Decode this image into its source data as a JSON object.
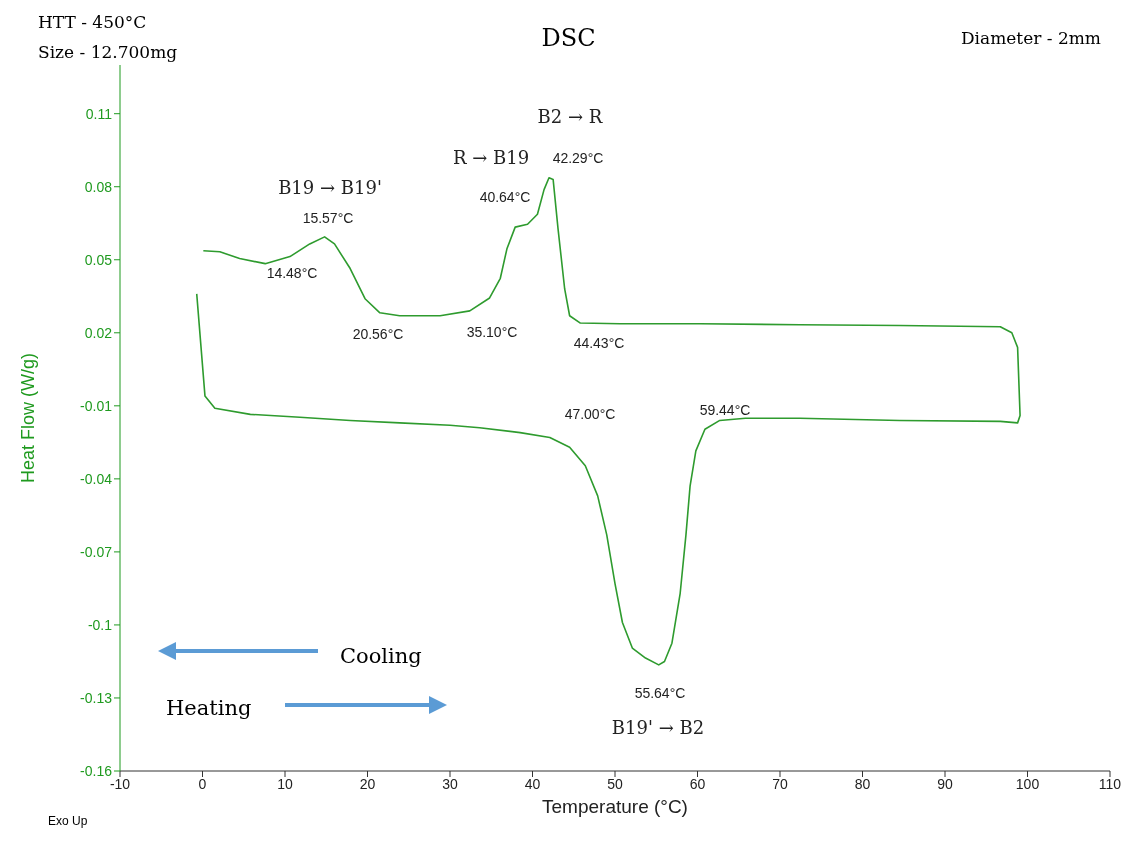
{
  "chart_data": {
    "type": "line",
    "title": "DSC",
    "xlabel": "Temperature (°C)",
    "ylabel": "Heat Flow (W/g)",
    "xlim": [
      -10,
      110
    ],
    "xticks": [
      -10,
      0,
      10,
      20,
      30,
      40,
      50,
      60,
      70,
      80,
      90,
      100,
      110
    ],
    "ylim": [
      -0.16,
      0.13
    ],
    "yticks": [
      -0.16,
      -0.13,
      -0.1,
      -0.07,
      -0.04,
      -0.01,
      0.02,
      0.05,
      0.08,
      0.11
    ],
    "grid": false,
    "legend": false,
    "series": [
      {
        "color": "#2e9b2e",
        "x": [
          -0.7,
          0.3,
          1.5,
          5.8,
          11.8,
          17.9,
          23.9,
          30,
          33.6,
          38.5,
          42.1,
          44.5,
          46.4,
          47.9,
          49,
          50,
          50.9,
          52.1,
          53.7,
          55.3,
          56,
          56.9,
          57.9,
          58.6,
          59.1,
          59.8,
          60.9,
          62.7,
          65.8,
          72.4,
          84.5,
          96.7,
          98.8,
          99.1,
          98.8,
          98.1,
          96.7,
          84.5,
          72.4,
          60.3,
          50.6,
          45.8,
          44.5,
          43.9,
          43.1,
          42.5,
          42,
          41.4,
          40.6,
          39.4,
          37.9,
          36.9,
          36.1,
          34.8,
          32.4,
          28.8,
          23.9,
          21.5,
          19.7,
          17.9,
          16,
          14.8,
          13,
          10.6,
          7.6,
          4.5,
          2.1,
          0.1
        ],
        "values": [
          0.036,
          -0.006,
          -0.011,
          -0.0135,
          -0.0147,
          -0.016,
          -0.017,
          -0.018,
          -0.019,
          -0.021,
          -0.023,
          -0.027,
          -0.0346,
          -0.047,
          -0.063,
          -0.083,
          -0.099,
          -0.1095,
          -0.1136,
          -0.1164,
          -0.115,
          -0.1075,
          -0.087,
          -0.063,
          -0.043,
          -0.0285,
          -0.0196,
          -0.016,
          -0.0151,
          -0.0151,
          -0.016,
          -0.0164,
          -0.017,
          -0.014,
          0.014,
          0.02,
          0.0225,
          0.023,
          0.0233,
          0.0237,
          0.0237,
          0.024,
          0.027,
          0.038,
          0.0626,
          0.083,
          0.0837,
          0.0788,
          0.0687,
          0.0646,
          0.0634,
          0.0545,
          0.0424,
          0.0343,
          0.029,
          0.027,
          0.027,
          0.0282,
          0.034,
          0.0464,
          0.0565,
          0.0594,
          0.0565,
          0.0513,
          0.0484,
          0.0505,
          0.0533,
          0.0537
        ]
      }
    ],
    "annotations": [
      "HTT - 450°C",
      "Size - 12.700mg",
      "Diameter - 2mm",
      "Exo Up",
      "Cooling",
      "Heating",
      "B19 → B19'",
      "15.57°C",
      "14.48°C",
      "20.56°C",
      "35.10°C",
      "R → B19",
      "40.64°C",
      "42.29°C",
      "B2 → R",
      "44.43°C",
      "47.00°C",
      "59.44°C",
      "55.64°C",
      "B19' → B2"
    ]
  }
}
